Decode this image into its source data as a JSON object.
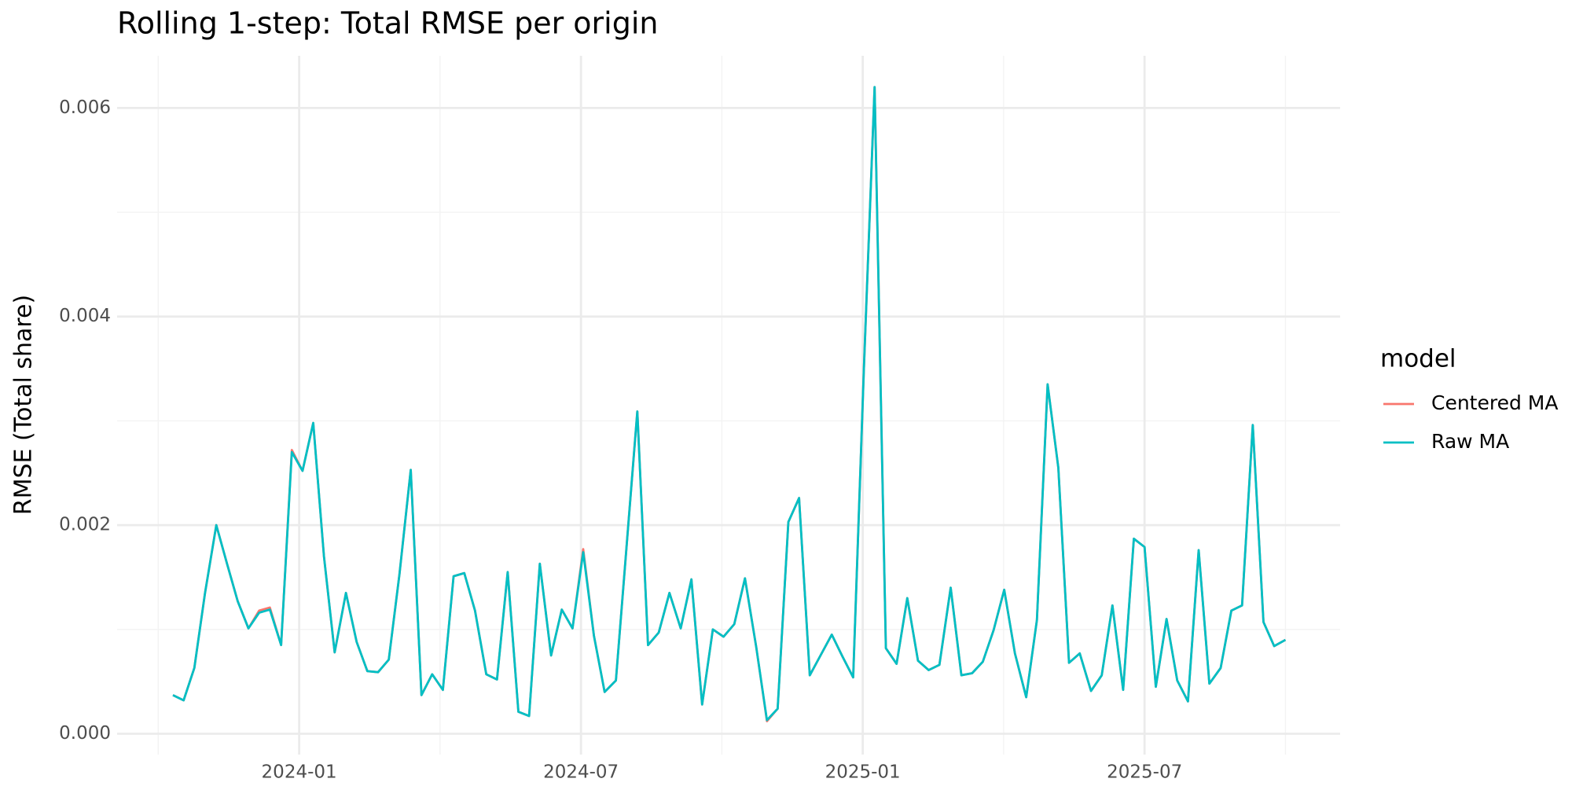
{
  "chart_data": {
    "type": "line",
    "title": "Rolling 1-step: Total RMSE per origin",
    "ylabel": "RMSE (Total share)",
    "legend_title": "model",
    "legend": "right",
    "grid": true,
    "xlim": [
      2023.677,
      2025.847
    ],
    "ylim": [
      -0.0002,
      0.0065
    ],
    "xticks": [
      {
        "value": 2024.0,
        "label": "2024-01"
      },
      {
        "value": 2024.5,
        "label": "2024-07"
      },
      {
        "value": 2025.0,
        "label": "2025-01"
      },
      {
        "value": 2025.5,
        "label": "2025-07"
      }
    ],
    "xminor": [
      2023.75,
      2024.25,
      2024.75,
      2025.25,
      2025.75
    ],
    "yticks": [
      {
        "value": 0,
        "label": "0.000"
      },
      0.002,
      0.004,
      0.006
    ],
    "yminor": [
      0.001,
      0.003,
      0.005
    ],
    "x": [
      2023.776,
      2023.795,
      2023.814,
      2023.833,
      2023.853,
      2023.872,
      2023.891,
      2023.91,
      2023.929,
      2023.948,
      2023.968,
      2023.987,
      2024.006,
      2024.025,
      2024.044,
      2024.063,
      2024.083,
      2024.102,
      2024.121,
      2024.14,
      2024.159,
      2024.178,
      2024.198,
      2024.217,
      2024.236,
      2024.255,
      2024.274,
      2024.293,
      2024.312,
      2024.332,
      2024.351,
      2024.37,
      2024.389,
      2024.408,
      2024.427,
      2024.447,
      2024.466,
      2024.485,
      2024.504,
      2024.523,
      2024.542,
      2024.562,
      2024.581,
      2024.6,
      2024.619,
      2024.638,
      2024.657,
      2024.677,
      2024.696,
      2024.715,
      2024.734,
      2024.753,
      2024.772,
      2024.791,
      2024.811,
      2024.83,
      2024.849,
      2024.868,
      2024.887,
      2024.906,
      2024.926,
      2024.945,
      2024.964,
      2024.983,
      2025.002,
      2025.021,
      2025.041,
      2025.06,
      2025.079,
      2025.098,
      2025.117,
      2025.136,
      2025.156,
      2025.175,
      2025.194,
      2025.213,
      2025.232,
      2025.251,
      2025.27,
      2025.29,
      2025.309,
      2025.328,
      2025.347,
      2025.366,
      2025.385,
      2025.405,
      2025.424,
      2025.443,
      2025.462,
      2025.481,
      2025.5,
      2025.52,
      2025.539,
      2025.558,
      2025.577,
      2025.596,
      2025.615,
      2025.635,
      2025.654,
      2025.673,
      2025.692,
      2025.711,
      2025.73,
      2025.75
    ],
    "series": [
      {
        "name": "Centered MA",
        "color": "#F8766D",
        "values": [
          0.00037,
          0.00032,
          0.00063,
          0.00135,
          0.002,
          0.00163,
          0.00127,
          0.00101,
          0.00118,
          0.00121,
          0.00085,
          0.00272,
          0.00252,
          0.00298,
          0.0017,
          0.00078,
          0.00135,
          0.00088,
          0.0006,
          0.00059,
          0.00071,
          0.00153,
          0.00253,
          0.00037,
          0.00057,
          0.00042,
          0.00151,
          0.00154,
          0.00118,
          0.00057,
          0.00052,
          0.00155,
          0.00021,
          0.00017,
          0.00163,
          0.00075,
          0.00119,
          0.00101,
          0.00177,
          0.00094,
          0.0004,
          0.00051,
          0.0018,
          0.00309,
          0.00085,
          0.00097,
          0.00135,
          0.00101,
          0.00148,
          0.00028,
          0.001,
          0.00093,
          0.00105,
          0.00149,
          0.00083,
          0.00012,
          0.00024,
          0.00203,
          0.00226,
          0.00056,
          0.00076,
          0.00095,
          0.00074,
          0.00054,
          0.0035,
          0.0062,
          0.00082,
          0.00067,
          0.0013,
          0.0007,
          0.00061,
          0.00066,
          0.0014,
          0.00056,
          0.00058,
          0.00069,
          0.00099,
          0.00138,
          0.00077,
          0.00035,
          0.00109,
          0.00335,
          0.00255,
          0.00068,
          0.00077,
          0.00041,
          0.00056,
          0.00123,
          0.00042,
          0.00187,
          0.00179,
          0.00045,
          0.0011,
          0.00051,
          0.00031,
          0.00176,
          0.00048,
          0.00063,
          0.00118,
          0.00123,
          0.00296,
          0.00107,
          0.00084,
          0.0009
        ]
      },
      {
        "name": "Raw MA",
        "color": "#00BFC4",
        "values": [
          0.00037,
          0.00032,
          0.00063,
          0.00135,
          0.002,
          0.00163,
          0.00127,
          0.00101,
          0.00116,
          0.00119,
          0.00085,
          0.0027,
          0.00252,
          0.00298,
          0.0017,
          0.00078,
          0.00135,
          0.00088,
          0.0006,
          0.00059,
          0.00071,
          0.00153,
          0.00253,
          0.00037,
          0.00057,
          0.00042,
          0.00151,
          0.00154,
          0.00118,
          0.00057,
          0.00052,
          0.00155,
          0.00021,
          0.00017,
          0.00163,
          0.00075,
          0.00119,
          0.00101,
          0.00174,
          0.00094,
          0.0004,
          0.00051,
          0.0018,
          0.00309,
          0.00085,
          0.00097,
          0.00135,
          0.00101,
          0.00148,
          0.00028,
          0.001,
          0.00093,
          0.00105,
          0.00149,
          0.00083,
          0.00013,
          0.00024,
          0.00203,
          0.00226,
          0.00056,
          0.00076,
          0.00095,
          0.00074,
          0.00054,
          0.0035,
          0.0062,
          0.00082,
          0.00067,
          0.0013,
          0.0007,
          0.00061,
          0.00066,
          0.0014,
          0.00056,
          0.00058,
          0.00069,
          0.00099,
          0.00138,
          0.00077,
          0.00035,
          0.00109,
          0.00335,
          0.00255,
          0.00068,
          0.00077,
          0.00041,
          0.00056,
          0.00123,
          0.00042,
          0.00187,
          0.00179,
          0.00045,
          0.0011,
          0.00051,
          0.00031,
          0.00176,
          0.00048,
          0.00063,
          0.00118,
          0.00123,
          0.00296,
          0.00107,
          0.00084,
          0.0009
        ]
      }
    ]
  }
}
